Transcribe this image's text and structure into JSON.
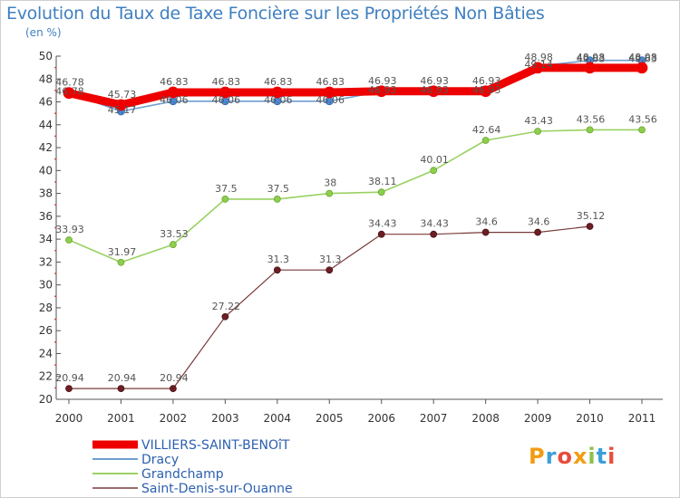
{
  "title": "Evolution du Taux de Taxe Foncière sur les Propriétés Non Bâties",
  "unit_label": "(en %)",
  "logo_text": "Proxiti",
  "chart_data": {
    "type": "line",
    "title": "Evolution du Taux de Taxe Foncière sur les Propriétés Non Bâties",
    "ylabel": "(en %)",
    "xlabel": "",
    "ylim": [
      20,
      50
    ],
    "ytick_step": 2,
    "categories": [
      "2000",
      "2001",
      "2002",
      "2003",
      "2004",
      "2005",
      "2006",
      "2007",
      "2008",
      "2009",
      "2010",
      "2011"
    ],
    "series": [
      {
        "name": "VILLIERS-SAINT-BENOîT",
        "color": "#ee0000",
        "values": [
          46.78,
          45.73,
          46.83,
          46.83,
          46.83,
          46.83,
          46.93,
          46.93,
          46.93,
          48.98,
          48.98,
          48.98
        ],
        "labels": [
          "46.78",
          "45.73",
          "46.83",
          "46.83",
          "46.83",
          "46.83",
          "46.93",
          "46.93",
          "46.93",
          "48.98",
          "48.98",
          "48.98"
        ]
      },
      {
        "name": "Dracy",
        "color": "#6f9fd0",
        "values": [
          46.78,
          45.17,
          46.06,
          46.06,
          46.06,
          46.06,
          46.93,
          46.93,
          46.93,
          49.14,
          49.63,
          49.63
        ],
        "labels": [
          "46.78",
          "45.17",
          "46.06",
          "46.06",
          "46.06",
          "46.06",
          "46.93",
          "46.93",
          "46.93",
          "49.14",
          "49.63",
          "49.63"
        ]
      },
      {
        "name": "Grandchamp",
        "color": "#99d162",
        "values": [
          33.93,
          31.97,
          33.53,
          37.5,
          37.5,
          38,
          38.11,
          40.01,
          42.64,
          43.43,
          43.56,
          43.56
        ],
        "labels": [
          "33.93",
          "31.97",
          "33.53",
          "37.5",
          "37.5",
          "38",
          "38.11",
          "40.01",
          "42.64",
          "43.43",
          "43.56",
          "43.56"
        ]
      },
      {
        "name": "Saint-Denis-sur-Ouanne",
        "color": "#7a3a3a",
        "values": [
          20.94,
          20.94,
          20.94,
          27.22,
          31.3,
          31.3,
          34.43,
          34.43,
          34.6,
          34.6,
          35.12,
          null
        ],
        "labels": [
          "20.94",
          "20.94",
          "20.94",
          "27.22",
          "31.3",
          "31.3",
          "34.43",
          "34.43",
          "34.6",
          "34.6",
          "35.12",
          ""
        ]
      }
    ],
    "legend_position": "bottom-left",
    "grid": false
  }
}
